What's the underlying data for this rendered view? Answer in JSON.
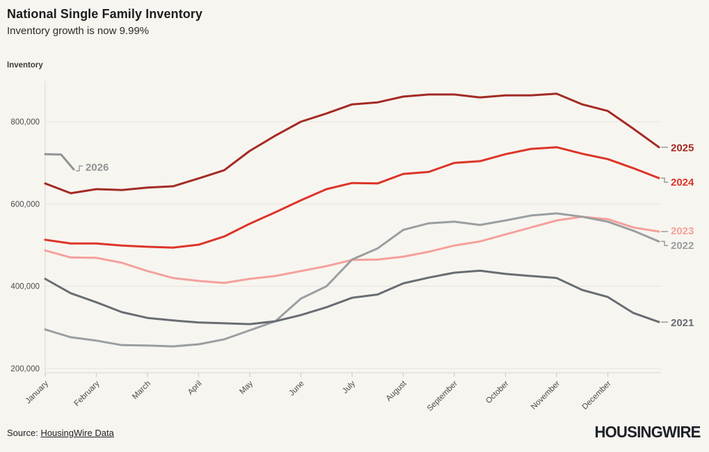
{
  "header": {
    "title": "National Single Family Inventory",
    "subtitle": "Inventory growth is now 9.99%"
  },
  "chart_data": {
    "type": "line",
    "title": "National Single Family Inventory",
    "subtitle": "Inventory growth is now 9.99%",
    "ylabel": "Inventory",
    "xlabel": "",
    "grid": true,
    "legend_position": "line-end-labels",
    "x_axis": {
      "months": [
        "January",
        "February",
        "March",
        "April",
        "May",
        "June",
        "July",
        "August",
        "September",
        "October",
        "November",
        "December"
      ]
    },
    "y_axis": {
      "ticks": [
        200000,
        400000,
        600000,
        800000
      ],
      "tick_labels": [
        "200,000",
        "400,000",
        "600,000",
        "800,000"
      ],
      "range": [
        150000,
        900000
      ]
    },
    "points_per_series": "25 evenly spaced (semi-monthly, Jan 1 to Dec 31)",
    "series": [
      {
        "name": "2025",
        "color": "#a32a24",
        "label_dy": 1,
        "values": [
          650000,
          626000,
          636000,
          634000,
          640000,
          643000,
          662000,
          682000,
          729000,
          766000,
          800000,
          820000,
          842000,
          847000,
          861000,
          866000,
          866000,
          859000,
          864000,
          864000,
          868000,
          842000,
          826000,
          783000,
          738000
        ]
      },
      {
        "name": "2024",
        "color": "#dd3427",
        "label_dy": 6,
        "values": [
          513000,
          504000,
          504000,
          499000,
          496000,
          494000,
          501000,
          521000,
          552000,
          580000,
          609000,
          636000,
          651000,
          650000,
          673000,
          678000,
          700000,
          704000,
          721000,
          734000,
          738000,
          722000,
          709000,
          687000,
          663000
        ]
      },
      {
        "name": "2023",
        "color": "#f5a09c",
        "label_dy": -1,
        "values": [
          487000,
          470000,
          469000,
          457000,
          437000,
          420000,
          413000,
          408000,
          418000,
          425000,
          437000,
          449000,
          464000,
          465000,
          472000,
          484000,
          499000,
          509000,
          526000,
          543000,
          560000,
          569000,
          563000,
          543000,
          533000
        ]
      },
      {
        "name": "2022",
        "color": "#9a9ea1",
        "label_dy": 6,
        "values": [
          295000,
          276000,
          268000,
          257000,
          256000,
          254000,
          259000,
          271000,
          293000,
          315000,
          370000,
          400000,
          465000,
          492000,
          537000,
          553000,
          557000,
          549000,
          560000,
          572000,
          577000,
          569000,
          557000,
          535000,
          509000
        ]
      },
      {
        "name": "2021",
        "color": "#686d72",
        "label_dy": 1,
        "values": [
          418000,
          383000,
          361000,
          337000,
          323000,
          317000,
          312000,
          310000,
          308000,
          315000,
          330000,
          349000,
          372000,
          380000,
          407000,
          421000,
          433000,
          438000,
          430000,
          425000,
          420000,
          391000,
          374000,
          335000,
          313000
        ]
      },
      {
        "name": "2026",
        "color": "#8f9294",
        "label_position": "start",
        "x_frac": [
          0,
          0.026,
          0.0465
        ],
        "values": [
          721000,
          720000,
          684000
        ]
      }
    ]
  },
  "footer": {
    "source_prefix": "Source:",
    "source_link": "HousingWire Data",
    "logo": "HOUSINGWIRE"
  }
}
